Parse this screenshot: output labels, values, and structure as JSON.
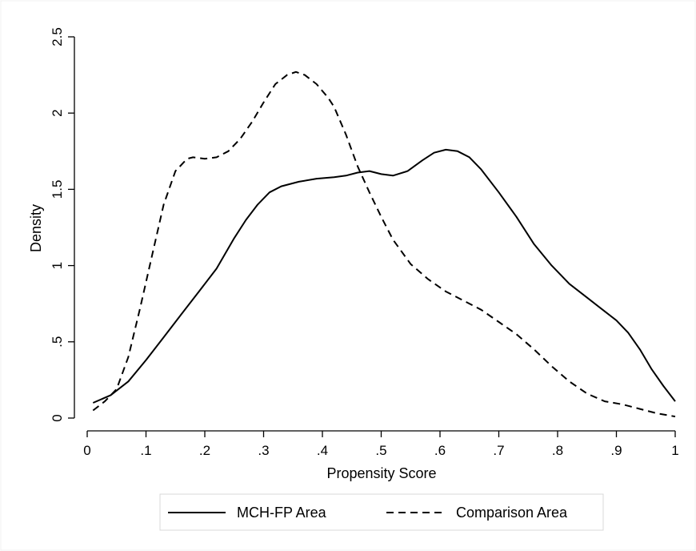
{
  "chart_data": {
    "type": "line",
    "title": "",
    "xlabel": "Propensity Score",
    "ylabel": "Density",
    "xlim": [
      0,
      1
    ],
    "ylim": [
      0,
      2.5
    ],
    "x_ticks": [
      0,
      0.1,
      0.2,
      0.3,
      0.4,
      0.5,
      0.6,
      0.7,
      0.8,
      0.9,
      1
    ],
    "x_tick_labels": [
      "0",
      ".1",
      ".2",
      ".3",
      ".4",
      ".5",
      ".6",
      ".7",
      ".8",
      ".9",
      "1"
    ],
    "y_ticks": [
      0,
      0.5,
      1,
      1.5,
      2,
      2.5
    ],
    "y_tick_labels": [
      "0",
      ".5",
      "1",
      "1.5",
      "2",
      "2.5"
    ],
    "grid": false,
    "legend_position": "bottom",
    "series": [
      {
        "name": "MCH-FP Area",
        "style": "solid",
        "color": "#000000",
        "x": [
          0.01,
          0.04,
          0.07,
          0.1,
          0.13,
          0.16,
          0.19,
          0.22,
          0.25,
          0.27,
          0.29,
          0.31,
          0.33,
          0.36,
          0.39,
          0.42,
          0.44,
          0.46,
          0.48,
          0.5,
          0.52,
          0.545,
          0.57,
          0.59,
          0.61,
          0.63,
          0.65,
          0.67,
          0.7,
          0.73,
          0.76,
          0.79,
          0.82,
          0.85,
          0.88,
          0.9,
          0.92,
          0.94,
          0.96,
          0.98,
          1.0
        ],
        "values": [
          0.1,
          0.15,
          0.24,
          0.38,
          0.53,
          0.68,
          0.83,
          0.98,
          1.18,
          1.3,
          1.4,
          1.48,
          1.52,
          1.55,
          1.57,
          1.58,
          1.59,
          1.61,
          1.62,
          1.6,
          1.59,
          1.62,
          1.69,
          1.74,
          1.76,
          1.75,
          1.71,
          1.63,
          1.48,
          1.32,
          1.14,
          1.0,
          0.88,
          0.79,
          0.7,
          0.64,
          0.56,
          0.45,
          0.32,
          0.21,
          0.11
        ]
      },
      {
        "name": "Comparison Area",
        "style": "dashed",
        "color": "#000000",
        "x": [
          0.01,
          0.03,
          0.05,
          0.07,
          0.09,
          0.11,
          0.13,
          0.15,
          0.17,
          0.18,
          0.2,
          0.22,
          0.24,
          0.26,
          0.28,
          0.3,
          0.32,
          0.34,
          0.355,
          0.37,
          0.39,
          0.41,
          0.42,
          0.44,
          0.46,
          0.48,
          0.5,
          0.52,
          0.55,
          0.58,
          0.61,
          0.64,
          0.67,
          0.7,
          0.73,
          0.76,
          0.79,
          0.82,
          0.85,
          0.88,
          0.91,
          0.94,
          0.97,
          1.0
        ],
        "values": [
          0.05,
          0.11,
          0.19,
          0.4,
          0.72,
          1.06,
          1.4,
          1.62,
          1.7,
          1.71,
          1.7,
          1.71,
          1.75,
          1.83,
          1.94,
          2.07,
          2.19,
          2.25,
          2.27,
          2.25,
          2.19,
          2.1,
          2.04,
          1.86,
          1.65,
          1.48,
          1.32,
          1.17,
          1.01,
          0.91,
          0.83,
          0.77,
          0.71,
          0.63,
          0.55,
          0.45,
          0.34,
          0.24,
          0.16,
          0.11,
          0.09,
          0.06,
          0.03,
          0.01
        ]
      }
    ]
  }
}
